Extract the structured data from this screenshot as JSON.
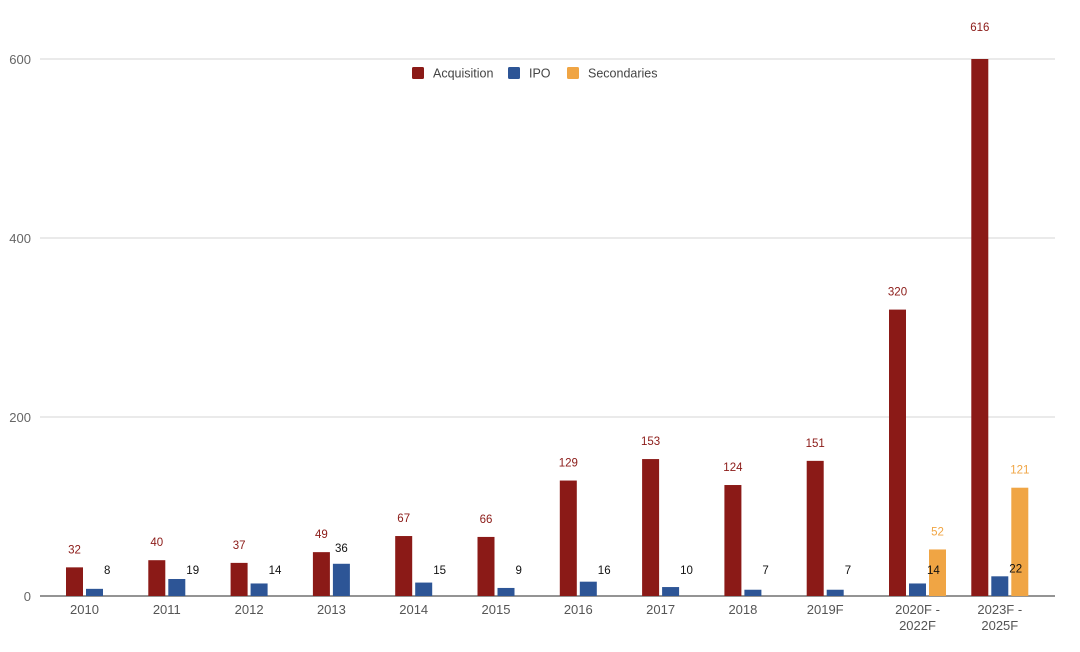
{
  "colors": {
    "Acquisition": "#8b1a17",
    "IPO": "#2d5596",
    "Secondaries": "#f0a544",
    "ipo_label": "#111111"
  },
  "chart_data": {
    "type": "bar",
    "categories": [
      [
        "2010"
      ],
      [
        "2011"
      ],
      [
        "2012"
      ],
      [
        "2013"
      ],
      [
        "2014"
      ],
      [
        "2015"
      ],
      [
        "2016"
      ],
      [
        "2017"
      ],
      [
        "2018"
      ],
      [
        "2019F"
      ],
      [
        "2020F -",
        "2022F"
      ],
      [
        "2023F -",
        "2025F"
      ]
    ],
    "series": [
      {
        "name": "Acquisition",
        "values": [
          32,
          40,
          37,
          49,
          67,
          66,
          129,
          153,
          124,
          151,
          320,
          616
        ]
      },
      {
        "name": "IPO",
        "values": [
          8,
          19,
          14,
          36,
          15,
          9,
          16,
          10,
          7,
          7,
          14,
          22
        ]
      },
      {
        "name": "Secondaries",
        "values": [
          null,
          null,
          null,
          null,
          null,
          null,
          null,
          null,
          null,
          null,
          52,
          121
        ]
      }
    ],
    "y_ticks": [
      "0",
      "200",
      "400",
      "600"
    ],
    "ylim": [
      0,
      600
    ],
    "title": "",
    "xlabel": "",
    "ylabel": "",
    "grid": true,
    "legend_position": "top-center"
  }
}
